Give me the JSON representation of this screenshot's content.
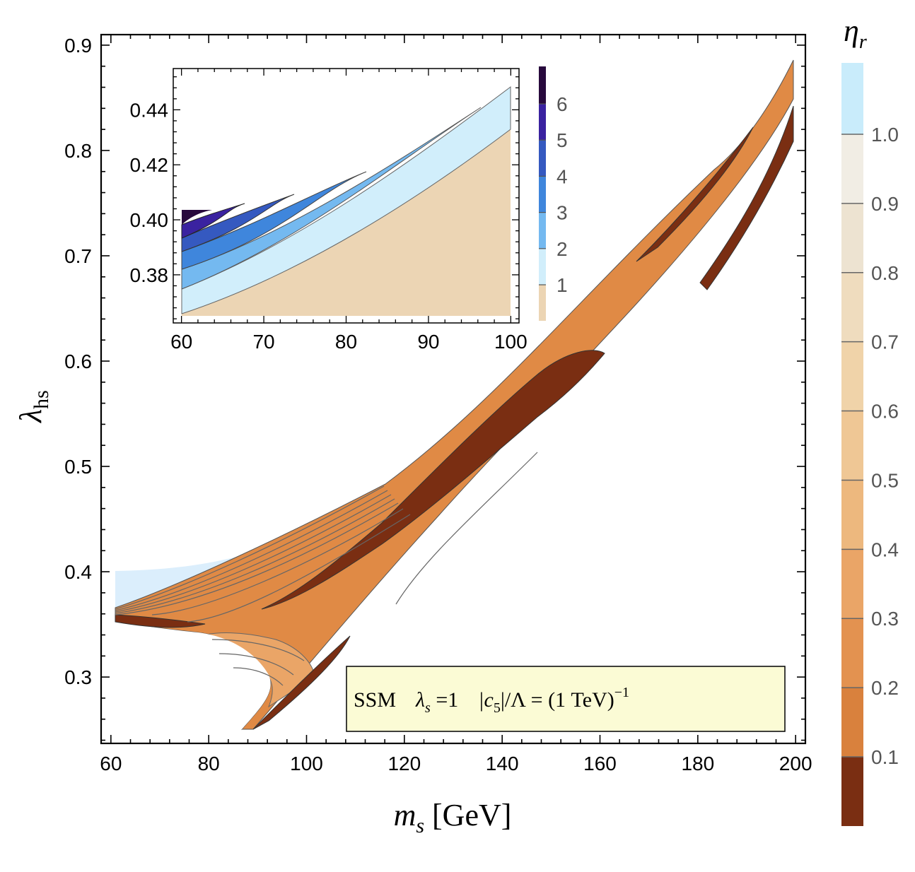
{
  "chart_data": [
    {
      "type": "contour",
      "name": "main",
      "title": "",
      "xlabel": "m_s [GeV]",
      "ylabel": "λ_hs",
      "xlim": [
        58,
        202
      ],
      "ylim": [
        0.237,
        0.91
      ],
      "xticks": [
        "60",
        "80",
        "100",
        "120",
        "140",
        "160",
        "180",
        "200"
      ],
      "yticks": [
        "0.3",
        "0.4",
        "0.5",
        "0.6",
        "0.7",
        "0.8",
        "0.9"
      ],
      "annotation": {
        "model": "SSM",
        "lambda_s": "λ",
        "lambda_sub": "s",
        "lambda_val": " =1",
        "c5_text": "|c",
        "c5_sub": "5",
        "c5_rest": "|/Λ = (1 TeV)",
        "exp": "−1"
      },
      "colorbar": {
        "title": "η",
        "title_sub": "r",
        "levels": [
          "0.1",
          "0.2",
          "0.3",
          "0.4",
          "0.5",
          "0.6",
          "0.7",
          "0.8",
          "0.9",
          "1.0"
        ],
        "colors": [
          "#7a2e12",
          "#d9813d",
          "#e39250",
          "#eaa567",
          "#edb87e",
          "#efc795",
          "#f0d3a9",
          "#efdcbe",
          "#ede3d1",
          "#f1ede4",
          "#c9ecfb"
        ]
      }
    },
    {
      "type": "contour",
      "name": "inset",
      "xlabel": "",
      "ylabel": "",
      "xlim": [
        59,
        101
      ],
      "ylim": [
        0.3625,
        0.455
      ],
      "xticks": [
        "60",
        "70",
        "80",
        "90",
        "100"
      ],
      "yticks": [
        "0.38",
        "0.40",
        "0.42",
        "0.44"
      ],
      "colorbar": {
        "levels": [
          "1",
          "2",
          "3",
          "4",
          "5",
          "6"
        ],
        "colors": [
          "#ecd5b4",
          "#d1eefb",
          "#74b9f0",
          "#3f86dc",
          "#3559c0",
          "#3a22a0",
          "#28093d"
        ]
      }
    }
  ]
}
